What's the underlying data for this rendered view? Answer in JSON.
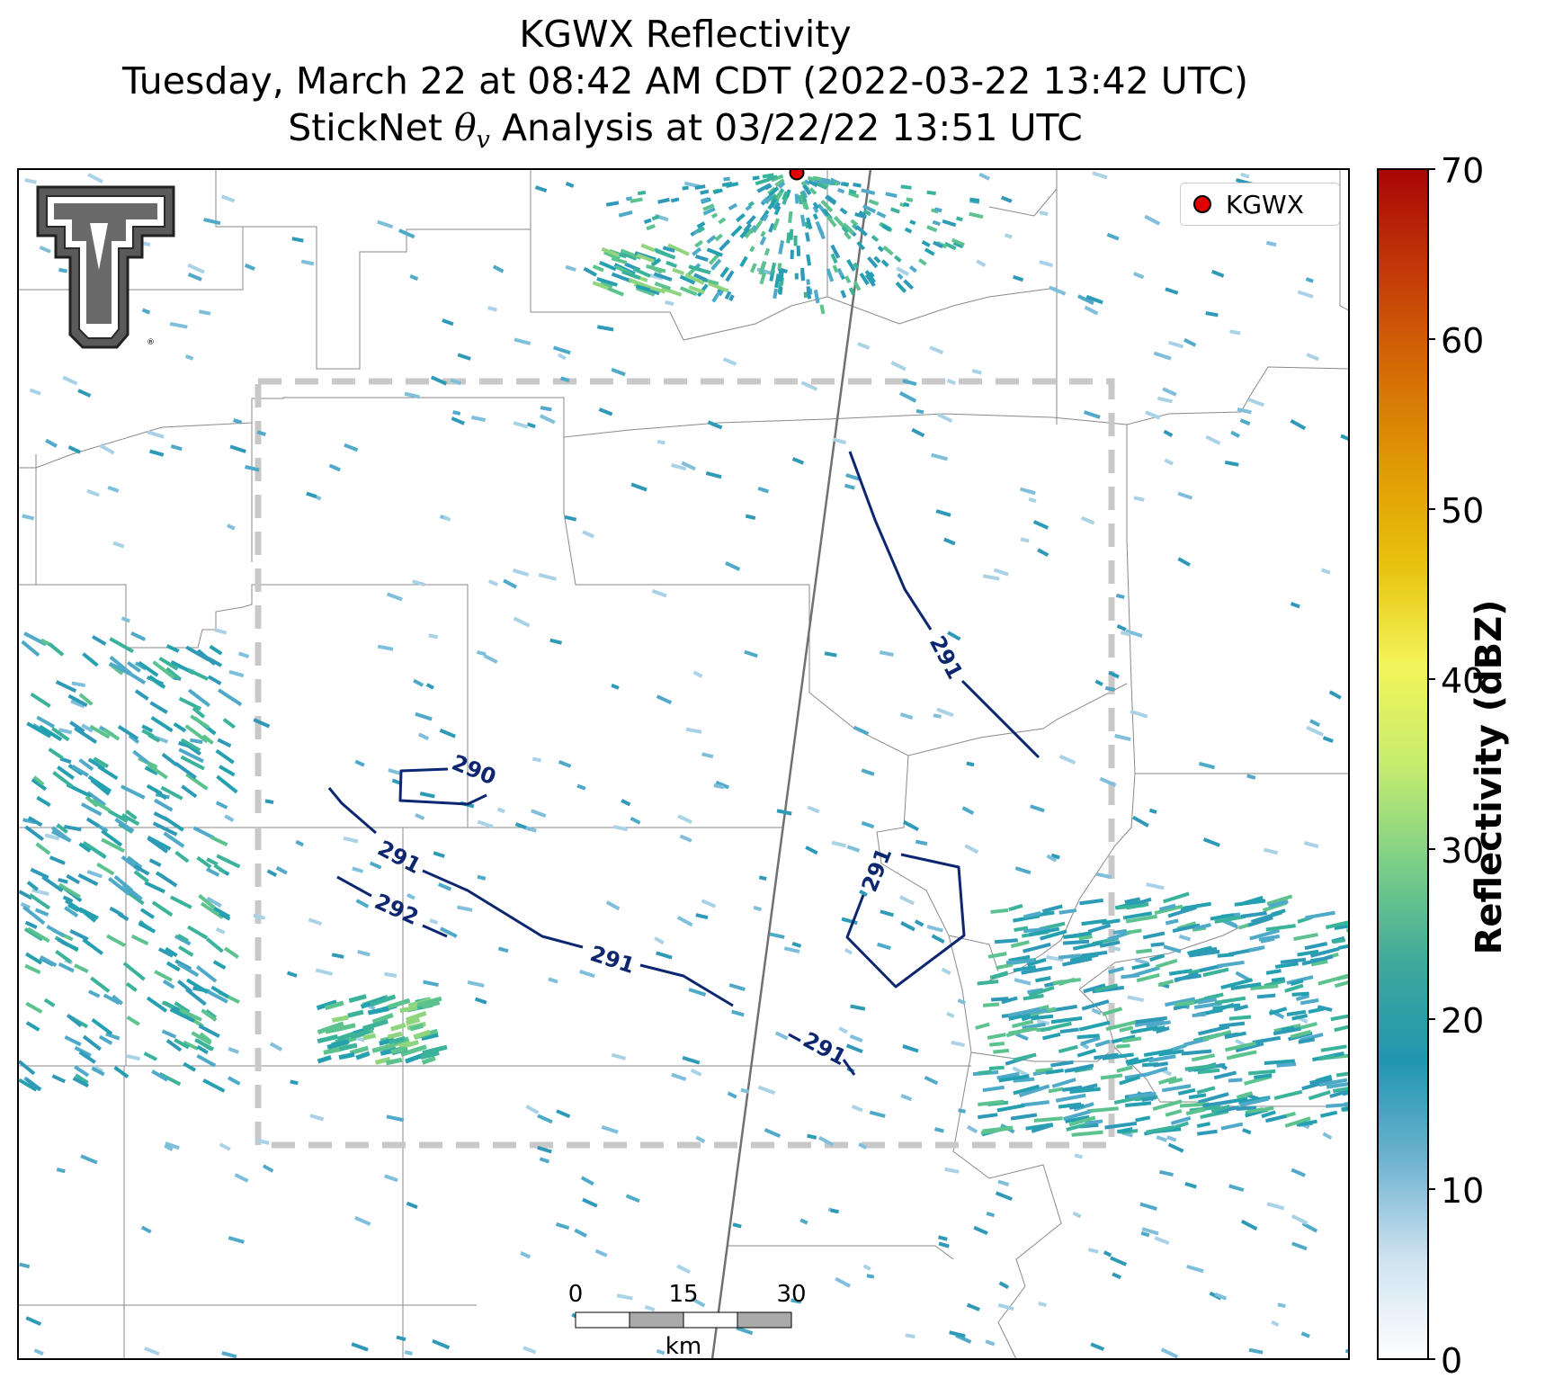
{
  "title": {
    "line1": "KGWX Reflectivity",
    "line2": "Tuesday, March 22 at 08:42 AM CDT (2022-03-22 13:42 UTC)",
    "line3_before": "StickNet ",
    "line3_symbol": "θ",
    "line3_subscript": "v",
    "line3_after": " Analysis at 03/22/22 13:51 UTC"
  },
  "legend": {
    "label": "KGWX",
    "marker_color": "#e00000"
  },
  "colorbar": {
    "label": "Reflectivity (dBZ)",
    "ticks": [
      "0",
      "10",
      "20",
      "30",
      "40",
      "50",
      "60",
      "70"
    ],
    "min": 0,
    "max": 70,
    "colors": [
      "#ffffff",
      "#cfe3f0",
      "#6fb3d0",
      "#2196b0",
      "#3ea99a",
      "#7ccf88",
      "#c6ec6e",
      "#f3f55a",
      "#e8c20f",
      "#e09a04",
      "#d46a06",
      "#c23808",
      "#a80606"
    ]
  },
  "contours": {
    "color": "#0d2670",
    "labels": [
      {
        "text": "291",
        "value": 291
      },
      {
        "text": "290",
        "value": 290
      },
      {
        "text": "291",
        "value": 291
      },
      {
        "text": "292",
        "value": 292
      },
      {
        "text": "291",
        "value": 291
      },
      {
        "text": "291",
        "value": 291
      },
      {
        "text": "291",
        "value": 291
      }
    ]
  },
  "scale_bar": {
    "ticks": [
      "0",
      "15",
      "30"
    ],
    "unit": "km"
  },
  "analysis_domain": {
    "style": "dashed",
    "color": "#c8c8c8"
  },
  "logo": {
    "name": "Texas Tech Double T",
    "registered_mark": "®"
  }
}
